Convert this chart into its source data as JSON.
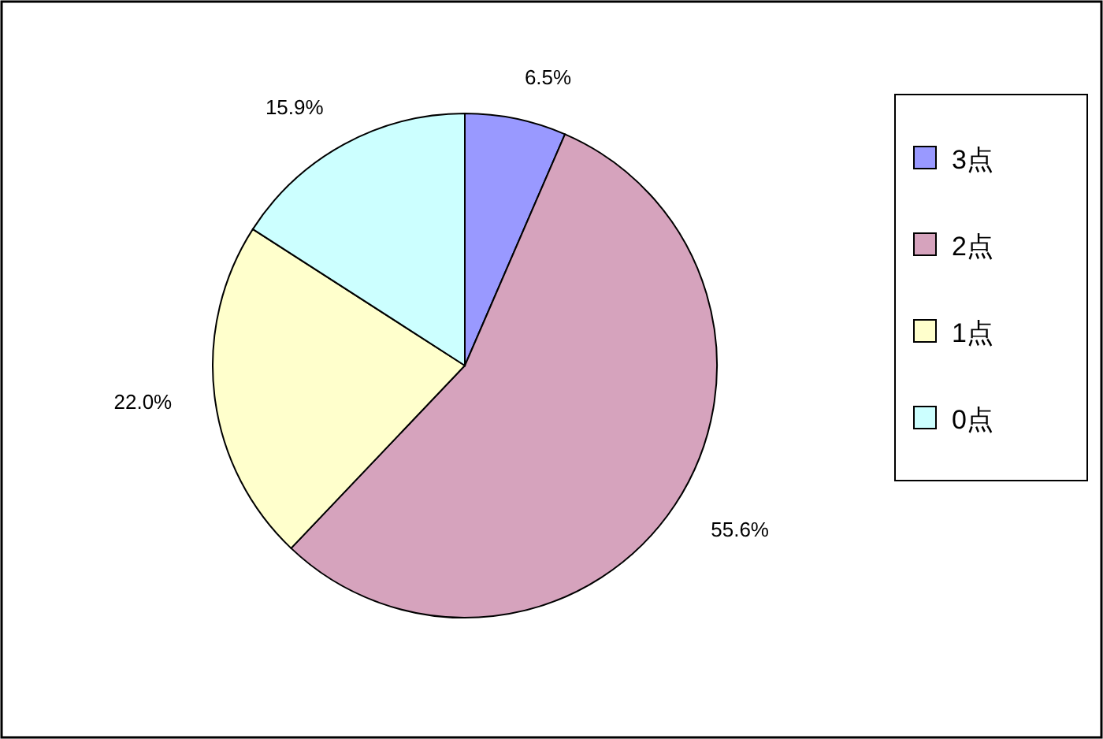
{
  "chart_data": {
    "type": "pie",
    "categories": [
      "3点",
      "2点",
      "1点",
      "0点"
    ],
    "values": [
      6.5,
      55.6,
      22.0,
      15.9
    ],
    "value_labels": [
      "6.5%",
      "55.6%",
      "22.0%",
      "15.9%"
    ],
    "colors": [
      "#9999ff",
      "#d6a3bd",
      "#ffffcc",
      "#ccffff"
    ],
    "legend": "right"
  }
}
